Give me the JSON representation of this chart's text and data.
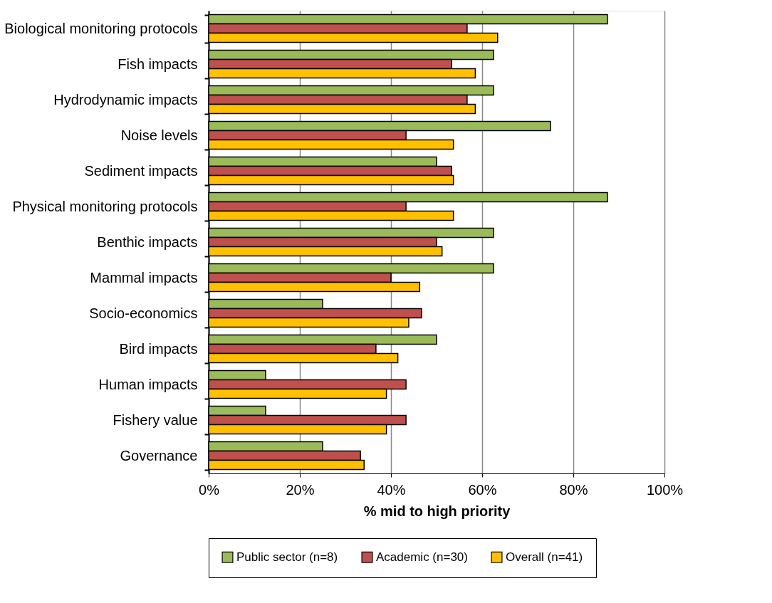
{
  "chart_data": {
    "type": "bar",
    "orientation": "horizontal",
    "xlabel": "% mid to high priority",
    "categories": [
      "Biological monitoring protocols",
      "Fish impacts",
      "Hydrodynamic impacts",
      "Noise levels",
      "Sediment impacts",
      "Physical monitoring protocols",
      "Benthic impacts",
      "Mammal impacts",
      "Socio-economics",
      "Bird impacts",
      "Human impacts",
      "Fishery value",
      "Governance"
    ],
    "series": [
      {
        "name": "Public sector (n=8)",
        "color": "#9bbb59",
        "values": [
          87.5,
          62.5,
          62.5,
          75,
          50,
          87.5,
          62.5,
          62.5,
          25,
          50,
          12.5,
          12.5,
          25
        ]
      },
      {
        "name": "Academic (n=30)",
        "color": "#c0504d",
        "values": [
          56.7,
          53.3,
          56.7,
          43.3,
          53.3,
          43.3,
          50,
          40,
          46.7,
          36.7,
          43.3,
          43.3,
          33.3
        ]
      },
      {
        "name": "Overall (n=41)",
        "color": "#ffc000",
        "values": [
          63.4,
          58.5,
          58.5,
          53.7,
          53.7,
          53.7,
          51.2,
          46.3,
          43.9,
          41.5,
          39,
          39,
          34.1
        ]
      }
    ],
    "xlim": [
      0,
      100
    ],
    "xticks": [
      {
        "value": 0,
        "label": "0%"
      },
      {
        "value": 20,
        "label": "20%"
      },
      {
        "value": 40,
        "label": "40%"
      },
      {
        "value": 60,
        "label": "60%"
      },
      {
        "value": 80,
        "label": "80%"
      },
      {
        "value": 100,
        "label": "100%"
      }
    ],
    "grid": "x",
    "legend": "bottom"
  }
}
